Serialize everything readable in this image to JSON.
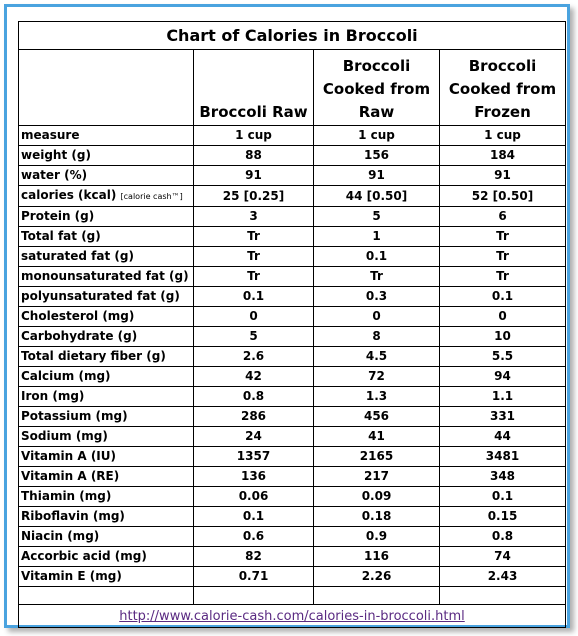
{
  "title": "Chart of Calories in Broccoli",
  "columns": [
    "Broccoli Raw",
    "Broccoli Cooked from Raw",
    "Broccoli Cooked from Frozen"
  ],
  "calorie_note": "[calorie cash™]",
  "rows": [
    {
      "label": "measure",
      "values": [
        "1 cup",
        "1 cup",
        "1 cup"
      ]
    },
    {
      "label": "weight (g)",
      "values": [
        "88",
        "156",
        "184"
      ]
    },
    {
      "label": "water (%)",
      "values": [
        "91",
        "91",
        "91"
      ]
    },
    {
      "label": "calories (kcal)",
      "values": [
        "25 [0.25]",
        "44 [0.50]",
        "52 [0.50]"
      ]
    },
    {
      "label": "Protein (g)",
      "values": [
        "3",
        "5",
        "6"
      ]
    },
    {
      "label": "Total fat (g)",
      "values": [
        "Tr",
        "1",
        "Tr"
      ]
    },
    {
      "label": "saturated fat  (g)",
      "values": [
        "Tr",
        "0.1",
        "Tr"
      ]
    },
    {
      "label": "monounsaturated fat  (g)",
      "values": [
        "Tr",
        "Tr",
        "Tr"
      ]
    },
    {
      "label": "polyunsaturated fat  (g)",
      "values": [
        "0.1",
        "0.3",
        "0.1"
      ]
    },
    {
      "label": "Cholesterol (mg)",
      "values": [
        "0",
        "0",
        "0"
      ]
    },
    {
      "label": "Carbohydrate (g)",
      "values": [
        "5",
        "8",
        "10"
      ]
    },
    {
      "label": "Total dietary fiber (g)",
      "values": [
        "2.6",
        "4.5",
        "5.5"
      ]
    },
    {
      "label": "Calcium (mg)",
      "values": [
        "42",
        "72",
        "94"
      ]
    },
    {
      "label": "Iron (mg)",
      "values": [
        "0.8",
        "1.3",
        "1.1"
      ]
    },
    {
      "label": "Potassium (mg)",
      "values": [
        "286",
        "456",
        "331"
      ]
    },
    {
      "label": "Sodium (mg)",
      "values": [
        "24",
        "41",
        "44"
      ]
    },
    {
      "label": "Vitamin A (IU)",
      "values": [
        "1357",
        "2165",
        "3481"
      ]
    },
    {
      "label": "Vitamin A (RE)",
      "values": [
        "136",
        "217",
        "348"
      ]
    },
    {
      "label": "Thiamin (mg)",
      "values": [
        "0.06",
        "0.09",
        "0.1"
      ]
    },
    {
      "label": "Riboflavin (mg)",
      "values": [
        "0.1",
        "0.18",
        "0.15"
      ]
    },
    {
      "label": "Niacin (mg)",
      "values": [
        "0.6",
        "0.9",
        "0.8"
      ]
    },
    {
      "label": "Accorbic acid (mg)",
      "values": [
        "82",
        "116",
        "74"
      ]
    },
    {
      "label": "Vitamin E (mg)",
      "values": [
        "0.71",
        "2.26",
        "2.43"
      ]
    }
  ],
  "link": "http://www.calorie-cash.com/calories-in-broccoli.html",
  "colors": {
    "frame": "#4aa3df",
    "link": "#5a2a82"
  }
}
